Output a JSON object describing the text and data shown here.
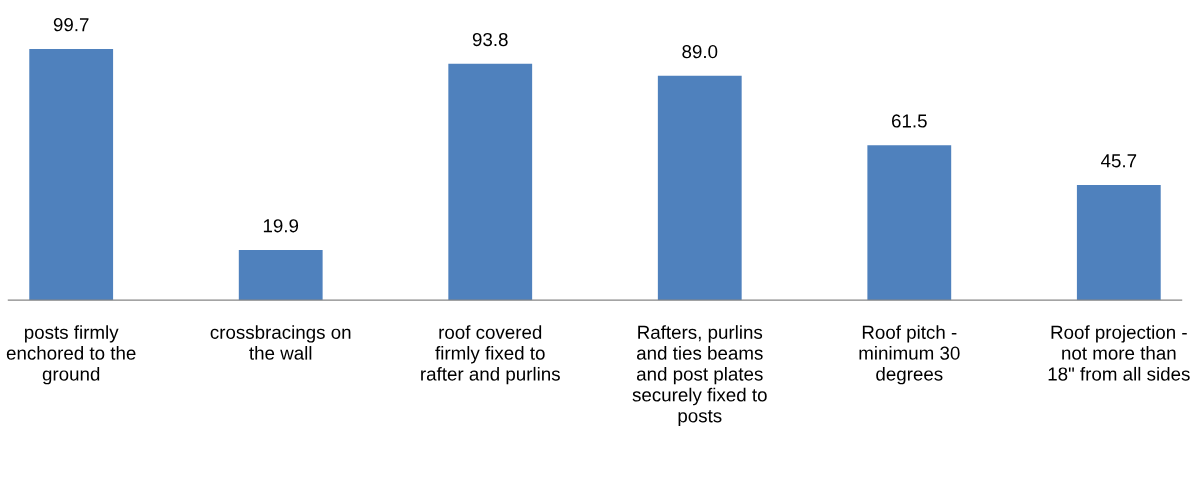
{
  "chart_data": {
    "type": "bar",
    "categories": [
      "posts firmly\nenchored to the\nground",
      "crossbracings on\nthe wall",
      "roof covered\nfirmly fixed to\nrafter and purlins",
      "Rafters, purlins\nand ties beams\nand post plates\nsecurely fixed to\nposts",
      "Roof pitch -\nminimum 30\ndegrees",
      "Roof projection -\nnot more than\n18\" from all sides"
    ],
    "values": [
      99.7,
      19.9,
      93.8,
      89.0,
      61.5,
      45.7
    ],
    "value_labels": [
      "99.7",
      "19.9",
      "93.8",
      "89.0",
      "61.5",
      "45.7"
    ],
    "color": "#4f81bd",
    "grid": false,
    "legend": false
  }
}
